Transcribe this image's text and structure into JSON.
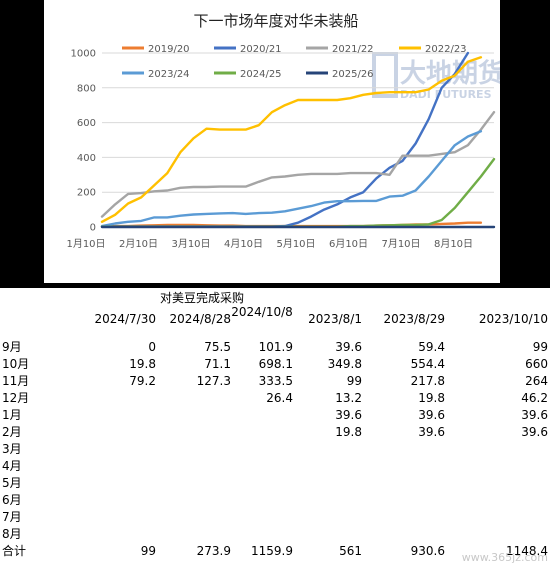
{
  "chart_data": {
    "type": "line",
    "title": "下一市场年度对华未装船",
    "yticks": [
      0,
      200,
      400,
      600,
      800,
      1000
    ],
    "ylim": [
      0,
      1000
    ],
    "xticks": [
      "1月10日",
      "2月10日",
      "3月10日",
      "4月10日",
      "5月10日",
      "6月10日",
      "7月10日",
      "8月10日"
    ],
    "xlim": [
      1,
      31
    ],
    "legend_position": "top",
    "series": [
      {
        "name": "2019/20",
        "color": "#ed7d31",
        "x": [
          1,
          2,
          3,
          4,
          5,
          6,
          7,
          8,
          9,
          10,
          11,
          12,
          13,
          14,
          15,
          16,
          17,
          18,
          19,
          20,
          21,
          22,
          23,
          24,
          25,
          26,
          27,
          28,
          29,
          30
        ],
        "y": [
          3,
          5,
          5,
          8,
          10,
          12,
          12,
          12,
          10,
          8,
          8,
          5,
          5,
          5,
          5,
          5,
          5,
          5,
          5,
          5,
          5,
          8,
          10,
          12,
          15,
          15,
          18,
          20,
          25,
          25
        ]
      },
      {
        "name": "2020/21",
        "color": "#4472c4",
        "x": [
          1,
          2,
          3,
          4,
          5,
          6,
          7,
          8,
          9,
          10,
          11,
          12,
          13,
          14,
          15,
          16,
          17,
          18,
          19,
          20,
          21,
          22,
          23,
          24,
          25,
          26,
          27,
          28,
          29
        ],
        "y": [
          3,
          3,
          3,
          3,
          3,
          3,
          3,
          3,
          3,
          3,
          3,
          3,
          3,
          3,
          5,
          25,
          60,
          100,
          130,
          170,
          200,
          280,
          340,
          380,
          480,
          620,
          800,
          880,
          1000
        ]
      },
      {
        "name": "2021/22",
        "color": "#a5a5a5",
        "x": [
          1,
          2,
          3,
          4,
          5,
          6,
          7,
          8,
          9,
          10,
          11,
          12,
          13,
          14,
          15,
          16,
          17,
          18,
          19,
          20,
          21,
          22,
          23,
          24,
          25,
          26,
          27,
          28,
          29,
          30,
          31
        ],
        "y": [
          60,
          130,
          190,
          195,
          205,
          210,
          225,
          230,
          230,
          232,
          232,
          232,
          260,
          285,
          290,
          300,
          305,
          305,
          305,
          310,
          310,
          310,
          300,
          410,
          410,
          410,
          420,
          430,
          470,
          560,
          660
        ]
      },
      {
        "name": "2022/23",
        "color": "#ffc000",
        "x": [
          1,
          2,
          3,
          4,
          5,
          6,
          7,
          8,
          9,
          10,
          11,
          12,
          13,
          14,
          15,
          16,
          17,
          18,
          19,
          20,
          21,
          22,
          23,
          24,
          25,
          26,
          27,
          28,
          29,
          30
        ],
        "y": [
          30,
          70,
          135,
          170,
          240,
          310,
          430,
          510,
          565,
          560,
          560,
          560,
          585,
          660,
          700,
          730,
          730,
          730,
          730,
          740,
          760,
          770,
          775,
          775,
          775,
          790,
          840,
          870,
          950,
          975
        ]
      },
      {
        "name": "2023/24",
        "color": "#5b9bd5",
        "x": [
          1,
          2,
          3,
          4,
          5,
          6,
          7,
          8,
          9,
          10,
          11,
          12,
          13,
          14,
          15,
          16,
          17,
          18,
          19,
          20,
          21,
          22,
          23,
          24,
          25,
          26,
          27,
          28,
          29,
          30
        ],
        "y": [
          5,
          20,
          30,
          35,
          55,
          55,
          65,
          72,
          75,
          78,
          80,
          75,
          80,
          82,
          90,
          105,
          120,
          140,
          148,
          148,
          150,
          150,
          175,
          180,
          210,
          290,
          380,
          470,
          520,
          550
        ]
      },
      {
        "name": "2024/25",
        "color": "#70ad47",
        "x": [
          1,
          2,
          3,
          4,
          5,
          6,
          7,
          8,
          9,
          10,
          11,
          12,
          13,
          14,
          15,
          16,
          17,
          18,
          19,
          20,
          21,
          22,
          23,
          24,
          25,
          26,
          27,
          28,
          29,
          30,
          31
        ],
        "y": [
          2,
          2,
          2,
          2,
          2,
          2,
          2,
          2,
          2,
          2,
          2,
          2,
          2,
          2,
          2,
          2,
          2,
          2,
          2,
          5,
          5,
          8,
          10,
          12,
          12,
          15,
          40,
          110,
          200,
          290,
          390
        ]
      },
      {
        "name": "2025/26",
        "color": "#264478",
        "x": [
          1,
          31
        ],
        "y": [
          0,
          0
        ]
      }
    ]
  },
  "watermark": {
    "main": "大地期货",
    "sub": "DADI FUTURES"
  },
  "table": {
    "title": "对美豆完成采购",
    "columns": [
      "2024/7/30",
      "2024/8/28",
      "2024/10/8",
      "2023/8/1",
      "2023/8/29",
      "2023/10/10"
    ],
    "rows": [
      {
        "label": "9月",
        "values": [
          "0",
          "75.5",
          "101.9",
          "39.6",
          "59.4",
          "99"
        ]
      },
      {
        "label": "10月",
        "values": [
          "19.8",
          "71.1",
          "698.1",
          "349.8",
          "554.4",
          "660"
        ]
      },
      {
        "label": "11月",
        "values": [
          "79.2",
          "127.3",
          "333.5",
          "99",
          "217.8",
          "264"
        ]
      },
      {
        "label": "12月",
        "values": [
          "",
          "",
          "26.4",
          "13.2",
          "19.8",
          "46.2"
        ]
      },
      {
        "label": "1月",
        "values": [
          "",
          "",
          "",
          "39.6",
          "39.6",
          "39.6"
        ]
      },
      {
        "label": "2月",
        "values": [
          "",
          "",
          "",
          "19.8",
          "39.6",
          "39.6"
        ]
      },
      {
        "label": "3月",
        "values": [
          "",
          "",
          "",
          "",
          "",
          ""
        ]
      },
      {
        "label": "4月",
        "values": [
          "",
          "",
          "",
          "",
          "",
          ""
        ]
      },
      {
        "label": "5月",
        "values": [
          "",
          "",
          "",
          "",
          "",
          ""
        ]
      },
      {
        "label": "6月",
        "values": [
          "",
          "",
          "",
          "",
          "",
          ""
        ]
      },
      {
        "label": "7月",
        "values": [
          "",
          "",
          "",
          "",
          "",
          ""
        ]
      },
      {
        "label": "8月",
        "values": [
          "",
          "",
          "",
          "",
          "",
          ""
        ]
      },
      {
        "label": "合计",
        "values": [
          "99",
          "273.9",
          "1159.9",
          "561",
          "930.6",
          "1148.4"
        ]
      }
    ]
  },
  "site_watermark": "www.365jz.com"
}
